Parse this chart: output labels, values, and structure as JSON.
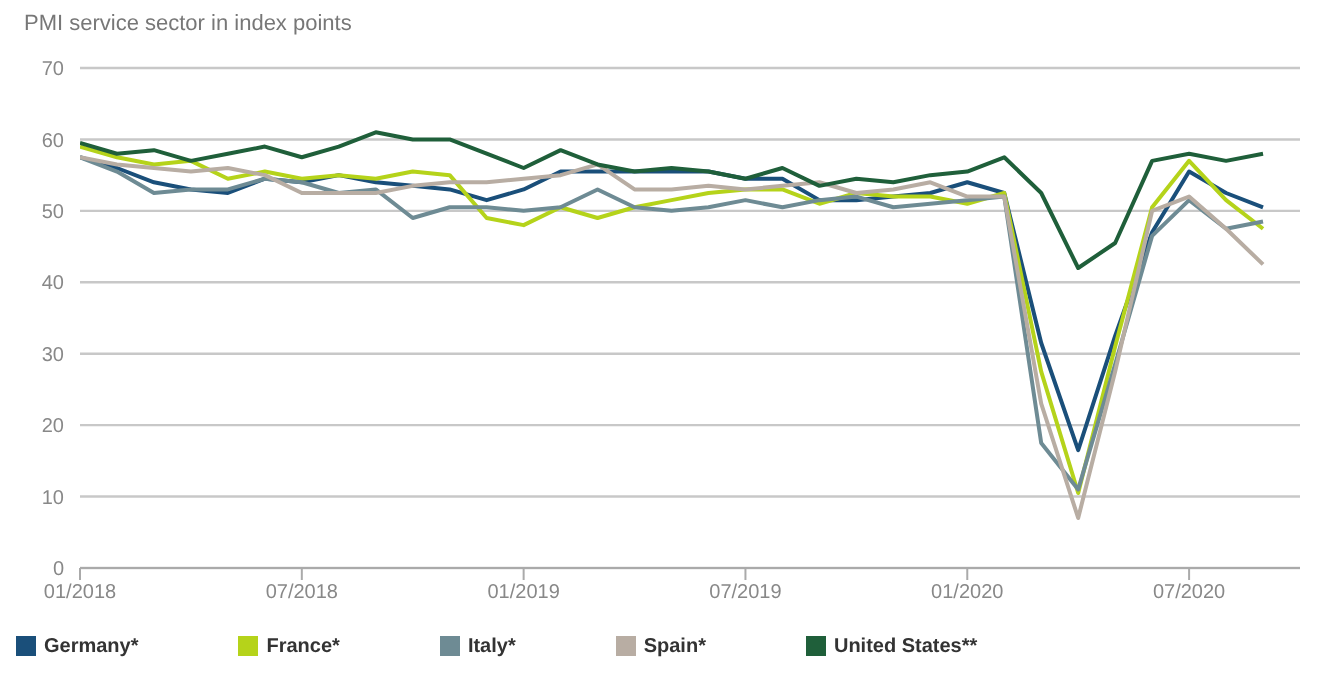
{
  "chart_data": {
    "type": "line",
    "title": "PMI service sector in index points",
    "x": [
      "2018-01",
      "2018-02",
      "2018-03",
      "2018-04",
      "2018-05",
      "2018-06",
      "2018-07",
      "2018-08",
      "2018-09",
      "2018-10",
      "2018-11",
      "2018-12",
      "2019-01",
      "2019-02",
      "2019-03",
      "2019-04",
      "2019-05",
      "2019-06",
      "2019-07",
      "2019-08",
      "2019-09",
      "2019-10",
      "2019-11",
      "2019-12",
      "2020-01",
      "2020-02",
      "2020-03",
      "2020-04",
      "2020-05",
      "2020-06",
      "2020-07",
      "2020-08",
      "2020-09"
    ],
    "series": [
      {
        "name": "Germany*",
        "color": "#1a4f7a",
        "values": [
          57.5,
          56,
          54,
          53,
          52.5,
          54.5,
          54,
          55,
          54,
          53.5,
          53,
          51.5,
          53,
          55.5,
          55.5,
          55.5,
          55.5,
          55.5,
          54.5,
          54.5,
          51.5,
          51.5,
          52,
          52.5,
          54,
          52.5,
          31.5,
          16.5,
          32.5,
          47,
          55.5,
          52.5,
          50.5
        ]
      },
      {
        "name": "France*",
        "color": "#b5d31a",
        "values": [
          59,
          57.5,
          56.5,
          57,
          54.5,
          55.5,
          54.5,
          55,
          54.5,
          55.5,
          55,
          49,
          48,
          50.5,
          49,
          50.5,
          51.5,
          52.5,
          53,
          53,
          51,
          52.5,
          52,
          52,
          51,
          52.5,
          27.5,
          10.5,
          31,
          50.5,
          57,
          51.5,
          47.5
        ]
      },
      {
        "name": "Italy*",
        "color": "#6e8b94",
        "values": [
          57.5,
          55.5,
          52.5,
          53,
          53,
          54.5,
          54,
          52.5,
          53,
          49,
          50.5,
          50.5,
          50,
          50.5,
          53,
          50.5,
          50,
          50.5,
          51.5,
          50.5,
          51.5,
          52,
          50.5,
          51,
          51.5,
          52,
          17.5,
          11,
          28.5,
          46.5,
          51.5,
          47.5,
          48.5
        ]
      },
      {
        "name": "Spain*",
        "color": "#b8ada3",
        "values": [
          57.5,
          56.5,
          56,
          55.5,
          56,
          55,
          52.5,
          52.5,
          52.5,
          53.5,
          54,
          54,
          54.5,
          55,
          56.5,
          53,
          53,
          53.5,
          53,
          53.5,
          54,
          52.5,
          53,
          54,
          52,
          52,
          23,
          7,
          27.5,
          50,
          52,
          47.5,
          42.5
        ]
      },
      {
        "name": "United States**",
        "color": "#1f5f3a",
        "values": [
          59.5,
          58,
          58.5,
          57,
          58,
          59,
          57.5,
          59,
          61,
          60,
          60,
          58,
          56,
          58.5,
          56.5,
          55.5,
          56,
          55.5,
          54.5,
          56,
          53.5,
          54.5,
          54,
          55,
          55.5,
          57.5,
          52.5,
          42,
          45.5,
          57,
          58,
          57,
          58
        ]
      }
    ],
    "xlim": [
      "2018-01",
      "2020-10"
    ],
    "xticks": [
      {
        "value": "2018-01",
        "label": "01/2018"
      },
      {
        "value": "2018-07",
        "label": "07/2018"
      },
      {
        "value": "2019-01",
        "label": "01/2019"
      },
      {
        "value": "2019-07",
        "label": "07/2019"
      },
      {
        "value": "2020-01",
        "label": "01/2020"
      },
      {
        "value": "2020-07",
        "label": "07/2020"
      }
    ],
    "ylim": [
      0,
      70
    ],
    "yticks": [
      0,
      10,
      20,
      30,
      40,
      50,
      60,
      70
    ],
    "grid": "y",
    "legend": "bottom left",
    "marker": "none",
    "line_style": "solid"
  }
}
